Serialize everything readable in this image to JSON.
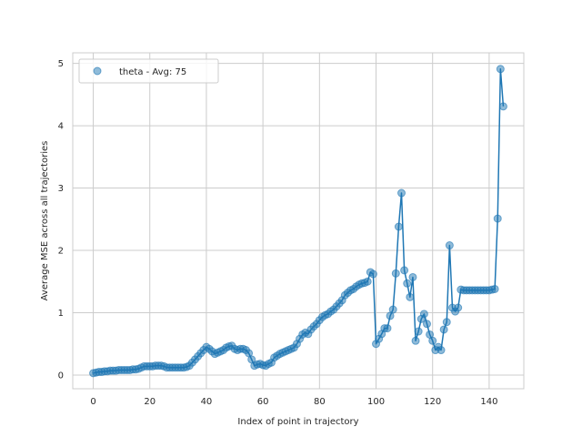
{
  "chart_data": {
    "type": "line",
    "title": "",
    "xlabel": "Index of point in trajectory",
    "ylabel": "Average MSE across all trajectories",
    "xlim": [
      -7.25,
      152.25
    ],
    "ylim": [
      -0.22,
      5.17
    ],
    "xticks": [
      0,
      20,
      40,
      60,
      80,
      100,
      120,
      140
    ],
    "yticks": [
      0,
      1,
      2,
      3,
      4,
      5
    ],
    "grid": true,
    "legend_position": "top-left",
    "series": [
      {
        "name": "theta - Avg: 75",
        "color": "#1f77b4",
        "marker": "circle",
        "line": true,
        "x": [
          0,
          1,
          2,
          3,
          4,
          5,
          6,
          7,
          8,
          9,
          10,
          11,
          12,
          13,
          14,
          15,
          16,
          17,
          18,
          19,
          20,
          21,
          22,
          23,
          24,
          25,
          26,
          27,
          28,
          29,
          30,
          31,
          32,
          33,
          34,
          35,
          36,
          37,
          38,
          39,
          40,
          41,
          42,
          43,
          44,
          45,
          46,
          47,
          48,
          49,
          50,
          51,
          52,
          53,
          54,
          55,
          56,
          57,
          58,
          59,
          60,
          61,
          62,
          63,
          64,
          65,
          66,
          67,
          68,
          69,
          70,
          71,
          72,
          73,
          74,
          75,
          76,
          77,
          78,
          79,
          80,
          81,
          82,
          83,
          84,
          85,
          86,
          87,
          88,
          89,
          90,
          91,
          92,
          93,
          94,
          95,
          96,
          97,
          98,
          99,
          100,
          101,
          102,
          103,
          104,
          105,
          106,
          107,
          108,
          109,
          110,
          111,
          112,
          113,
          114,
          115,
          116,
          117,
          118,
          119,
          120,
          121,
          122,
          123,
          124,
          125,
          126,
          127,
          128,
          129,
          130,
          131,
          132,
          133,
          134,
          135,
          136,
          137,
          138,
          139,
          140,
          141,
          142,
          143,
          144,
          145
        ],
        "y": [
          0.03,
          0.04,
          0.05,
          0.05,
          0.06,
          0.06,
          0.07,
          0.07,
          0.07,
          0.08,
          0.08,
          0.08,
          0.08,
          0.08,
          0.09,
          0.09,
          0.1,
          0.12,
          0.14,
          0.14,
          0.14,
          0.14,
          0.15,
          0.15,
          0.15,
          0.14,
          0.12,
          0.12,
          0.12,
          0.12,
          0.12,
          0.12,
          0.12,
          0.13,
          0.15,
          0.2,
          0.25,
          0.3,
          0.35,
          0.4,
          0.45,
          0.42,
          0.38,
          0.34,
          0.36,
          0.38,
          0.4,
          0.44,
          0.46,
          0.47,
          0.42,
          0.4,
          0.42,
          0.42,
          0.4,
          0.35,
          0.25,
          0.15,
          0.17,
          0.18,
          0.16,
          0.15,
          0.18,
          0.2,
          0.28,
          0.31,
          0.34,
          0.36,
          0.38,
          0.4,
          0.42,
          0.44,
          0.5,
          0.58,
          0.65,
          0.68,
          0.66,
          0.73,
          0.78,
          0.82,
          0.88,
          0.93,
          0.96,
          0.98,
          1.02,
          1.05,
          1.1,
          1.15,
          1.2,
          1.28,
          1.32,
          1.36,
          1.38,
          1.42,
          1.45,
          1.47,
          1.48,
          1.5,
          1.65,
          1.62,
          0.5,
          0.58,
          0.66,
          0.75,
          0.75,
          0.95,
          1.05,
          1.63,
          2.38,
          2.92,
          1.68,
          1.47,
          1.25,
          1.57,
          0.55,
          0.7,
          0.9,
          0.98,
          0.82,
          0.65,
          0.55,
          0.4,
          0.45,
          0.4,
          0.73,
          0.85,
          2.08,
          1.08,
          1.02,
          1.08,
          1.37,
          1.36,
          1.36,
          1.36,
          1.36,
          1.36,
          1.36,
          1.36,
          1.36,
          1.36,
          1.36,
          1.37,
          1.38,
          2.51,
          4.91,
          4.31
        ]
      }
    ]
  }
}
